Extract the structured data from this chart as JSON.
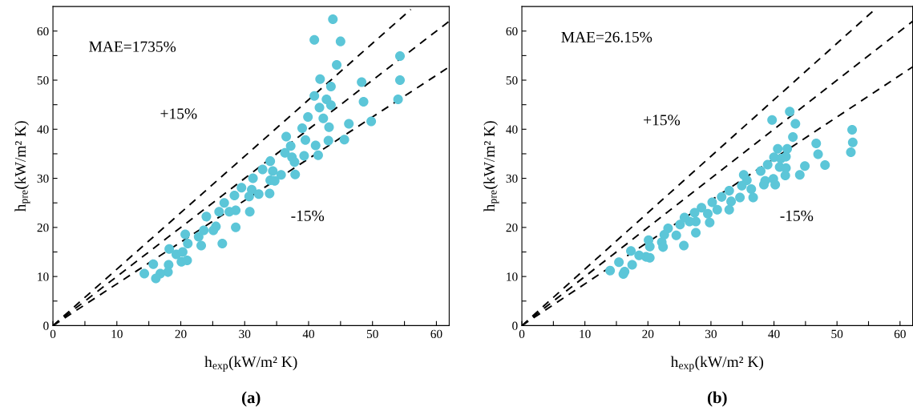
{
  "chart_data": [
    {
      "type": "scatter",
      "xlabel": "h$_{exp}$(kW/m² K)",
      "ylabel": "h$_{pre}$(kW/m² K)",
      "xlim": [
        0,
        62
      ],
      "ylim": [
        0,
        65
      ],
      "xticks": [
        0,
        {
          "value": 5,
          "label": null
        },
        10,
        {
          "value": 15,
          "label": null
        },
        20,
        {
          "value": 25,
          "label": null
        },
        30,
        {
          "value": 35,
          "label": null
        },
        40,
        {
          "value": 45,
          "label": null
        },
        50,
        {
          "value": 55,
          "label": null
        },
        60
      ],
      "yticks": [
        0,
        {
          "value": 5,
          "label": null
        },
        10,
        {
          "value": 15,
          "label": null
        },
        20,
        {
          "value": 25,
          "label": null
        },
        30,
        {
          "value": 35,
          "label": null
        },
        40,
        {
          "value": 45,
          "label": null
        },
        50,
        {
          "value": 55,
          "label": null
        },
        60
      ],
      "grid": false,
      "annotations": [
        "MAE=1735%",
        "+15%",
        "-15%",
        "(a)"
      ],
      "series": [
        {
          "marker": "circle",
          "color": "#5cc6d8",
          "x": [
            43.8,
            40.9,
            45.0,
            44.4,
            54.3,
            41.8,
            43.5,
            48.3,
            54.3,
            40.9,
            42.8,
            43.5,
            41.7,
            48.6,
            54.0,
            39.9,
            42.3,
            43.2,
            39.0,
            46.3,
            49.8,
            36.5,
            39.5,
            43.1,
            45.6,
            37.2,
            36.3,
            41.1,
            39.3,
            41.5,
            37.4,
            37.8,
            34.0,
            34.4,
            32.8,
            35.7,
            37.9,
            34.0,
            34.7,
            31.3,
            29.5,
            31.1,
            32.2,
            33.9,
            30.7,
            28.4,
            26.8,
            28.6,
            27.6,
            30.8,
            26.0,
            24.0,
            25.5,
            28.6,
            23.6,
            25.1,
            20.7,
            22.8,
            21.1,
            23.2,
            26.5,
            18.2,
            19.3,
            20.3,
            20.1,
            21.0,
            18.1,
            15.7,
            18.0,
            16.8,
            14.3,
            16.1
          ],
          "values": [
            62.4,
            58.2,
            57.9,
            53.1,
            54.9,
            50.2,
            48.7,
            49.6,
            50.0,
            46.8,
            46.1,
            44.9,
            44.4,
            45.6,
            46.1,
            42.5,
            42.2,
            40.4,
            40.2,
            41.1,
            41.6,
            38.5,
            37.8,
            37.7,
            37.9,
            36.6,
            35.2,
            36.7,
            34.6,
            34.7,
            34.3,
            33.3,
            33.5,
            31.5,
            31.8,
            30.7,
            30.8,
            29.6,
            29.5,
            30.0,
            28.1,
            27.7,
            26.8,
            26.9,
            26.3,
            26.5,
            25.0,
            23.5,
            23.2,
            23.2,
            23.2,
            22.2,
            20.2,
            20.0,
            19.4,
            19.4,
            18.6,
            18.1,
            16.7,
            16.3,
            16.7,
            15.6,
            14.5,
            15.0,
            13.0,
            13.3,
            12.4,
            12.5,
            10.9,
            10.6,
            10.6,
            9.6
          ]
        },
        {
          "type": "line",
          "color": "#000000",
          "line_style": "dashed",
          "x": [
            0,
            56
          ],
          "values": [
            0,
            64.4
          ]
        },
        {
          "type": "line",
          "color": "#000000",
          "line_style": "dashed",
          "x": [
            0,
            62
          ],
          "values": [
            0,
            62
          ]
        },
        {
          "type": "line",
          "color": "#000000",
          "line_style": "dashed",
          "x": [
            0,
            62
          ],
          "values": [
            0,
            52.7
          ]
        }
      ]
    },
    {
      "type": "scatter",
      "xlabel": "h$_{exp}$(kW/m² K)",
      "ylabel": "h$_{pre}$(kW/m² K)",
      "xlim": [
        0,
        62
      ],
      "ylim": [
        0,
        65
      ],
      "xticks": [
        0,
        {
          "value": 5,
          "label": null
        },
        10,
        {
          "value": 15,
          "label": null
        },
        20,
        {
          "value": 25,
          "label": null
        },
        30,
        {
          "value": 35,
          "label": null
        },
        40,
        {
          "value": 45,
          "label": null
        },
        50,
        {
          "value": 55,
          "label": null
        },
        60
      ],
      "yticks": [
        0,
        {
          "value": 5,
          "label": null
        },
        10,
        {
          "value": 15,
          "label": null
        },
        20,
        {
          "value": 25,
          "label": null
        },
        30,
        {
          "value": 35,
          "label": null
        },
        40,
        {
          "value": 45,
          "label": null
        },
        50,
        {
          "value": 55,
          "label": null
        },
        60
      ],
      "grid": false,
      "annotations": [
        "MAE=26.15%",
        "+15%",
        "-15%",
        "(b)"
      ],
      "series": [
        {
          "marker": "circle",
          "color": "#5cc6d8",
          "x": [
            42.5,
            39.7,
            43.4,
            43.0,
            52.4,
            52.5,
            52.2,
            46.7,
            47.0,
            48.1,
            44.9,
            44.1,
            40.6,
            42.1,
            40.0,
            41.1,
            41.9,
            40.9,
            41.9,
            41.8,
            39.0,
            37.9,
            38.6,
            39.9,
            38.4,
            40.2,
            35.2,
            35.7,
            34.9,
            36.4,
            36.7,
            34.6,
            32.9,
            31.7,
            33.2,
            30.2,
            31.0,
            32.9,
            28.5,
            29.5,
            27.4,
            29.8,
            27.6,
            26.6,
            25.8,
            25.1,
            27.6,
            23.2,
            24.5,
            22.6,
            22.2,
            22.4,
            25.7,
            20.1,
            20.3,
            17.3,
            18.6,
            19.7,
            20.3,
            17.5,
            16.3,
            15.4,
            14.0,
            16.1
          ],
          "values": [
            43.6,
            41.9,
            41.1,
            38.4,
            39.9,
            37.3,
            35.3,
            37.1,
            34.9,
            32.7,
            32.5,
            30.7,
            36.0,
            36.0,
            34.3,
            34.0,
            34.4,
            32.3,
            32.1,
            30.6,
            32.8,
            31.5,
            29.5,
            29.9,
            28.7,
            28.7,
            30.7,
            29.6,
            28.5,
            27.8,
            26.1,
            26.1,
            27.5,
            26.2,
            25.3,
            25.1,
            23.6,
            23.6,
            24.0,
            22.8,
            23.0,
            21.0,
            21.2,
            21.2,
            22.0,
            20.6,
            18.9,
            19.8,
            18.4,
            18.5,
            17.0,
            16.0,
            16.3,
            17.4,
            16.1,
            15.2,
            14.3,
            14.0,
            13.8,
            12.4,
            11.0,
            12.9,
            11.2,
            10.5
          ]
        },
        {
          "type": "line",
          "color": "#000000",
          "line_style": "dashed",
          "x": [
            0,
            56
          ],
          "values": [
            0,
            64.4
          ]
        },
        {
          "type": "line",
          "color": "#000000",
          "line_style": "dashed",
          "x": [
            0,
            62
          ],
          "values": [
            0,
            62
          ]
        },
        {
          "type": "line",
          "color": "#000000",
          "line_style": "dashed",
          "x": [
            0,
            62
          ],
          "values": [
            0,
            52.7
          ]
        }
      ]
    }
  ]
}
